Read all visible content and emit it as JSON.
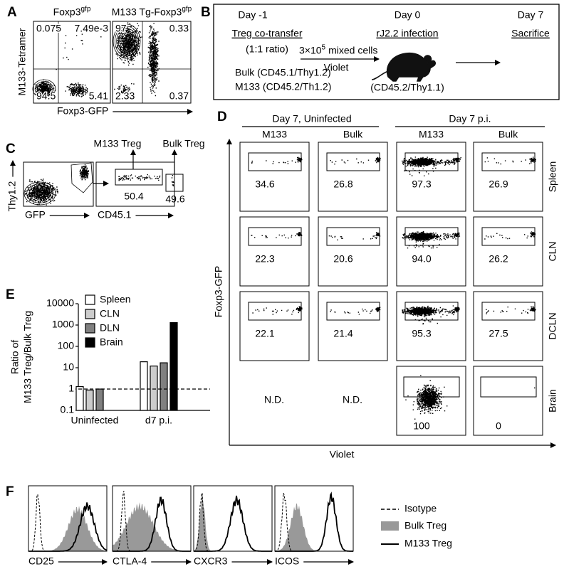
{
  "panel_a": {
    "label": "A",
    "plots": [
      {
        "title": "Foxp3",
        "title_sup": "gfp",
        "quadrants": [
          "0.075",
          "7.49e-3",
          "94.5",
          "5.41"
        ]
      },
      {
        "title": "M133 Tg-Foxp3",
        "title_sup": "gfp",
        "quadrants": [
          "97",
          "0.33",
          "2.33",
          "0.37"
        ]
      }
    ],
    "y_label": "M133-Tetramer",
    "x_label": "Foxp3-GFP"
  },
  "panel_b": {
    "label": "B",
    "days": [
      "Day -1",
      "Day 0",
      "Day 7"
    ],
    "transfer": "Treg co-transfer",
    "ratio": "(1:1 ratio)",
    "cells_base": "3×10",
    "cells_exp": "5",
    "cells_text": "mixed cells",
    "dye": "Violet",
    "bulk": "Bulk (CD45.1/Thy1.2)",
    "m133": "M133 (CD45.2/Th1.2)",
    "infection": "rJ2.2 infection",
    "host": "(CD45.2/Thy1.1)",
    "endpoint": "Sacrifice"
  },
  "panel_c": {
    "label": "C",
    "gates": [
      "M133 Treg",
      "Bulk Treg"
    ],
    "gate_values": [
      "50.4",
      "49.6"
    ],
    "y_label": "Thy1.2",
    "x_label_left": "GFP",
    "x_label_right": "CD45.1"
  },
  "panel_d": {
    "label": "D",
    "groups": [
      "Day 7, Uninfected",
      "Day 7 p.i."
    ],
    "columns": [
      "M133",
      "Bulk",
      "M133",
      "Bulk"
    ],
    "rows": [
      "Spleen",
      "CLN",
      "DCLN",
      "Brain"
    ],
    "values": [
      [
        "34.6",
        "26.8",
        "97.3",
        "26.9"
      ],
      [
        "22.3",
        "20.6",
        "94.0",
        "26.2"
      ],
      [
        "22.1",
        "21.4",
        "95.3",
        "27.5"
      ],
      [
        "N.D.",
        "N.D.",
        "100",
        "0"
      ]
    ],
    "y_label": "Foxp3-GFP",
    "x_label": "Violet"
  },
  "chart_data": {
    "type": "bar",
    "label": "E",
    "y_label": [
      "Ratio of",
      "M133 Treg/Bulk Treg"
    ],
    "categories": [
      "Uninfected",
      "d7 p.i."
    ],
    "series": [
      {
        "name": "Spleen",
        "color": "#ffffff",
        "values": [
          1.3,
          19
        ]
      },
      {
        "name": "CLN",
        "color": "#cccccc",
        "values": [
          0.9,
          12
        ]
      },
      {
        "name": "DLN",
        "color": "#808080",
        "values": [
          1.0,
          17
        ]
      },
      {
        "name": "Brain",
        "color": "#000000",
        "values": [
          null,
          1300
        ]
      }
    ],
    "ylim": [
      0.1,
      10000
    ],
    "yticks": [
      0.1,
      1,
      10,
      100,
      1000,
      10000
    ],
    "log_scale": true,
    "reference_line": 1
  },
  "panel_f": {
    "label": "F",
    "markers": [
      "CD25",
      "CTLA-4",
      "CXCR3",
      "ICOS"
    ],
    "legend": [
      "Isotype",
      "Bulk Treg",
      "M133 Treg"
    ]
  }
}
